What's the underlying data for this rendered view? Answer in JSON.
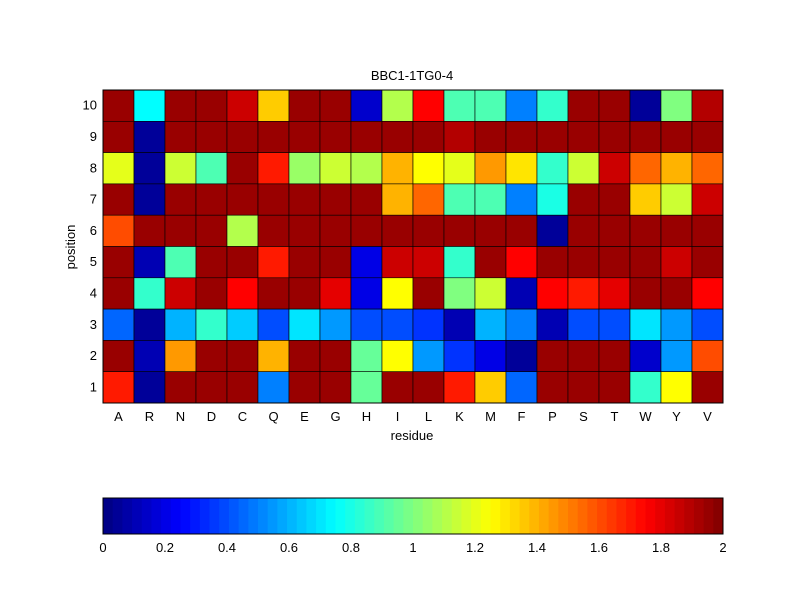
{
  "chart_data": {
    "type": "heatmap",
    "title": "BBC1-1TG0-4",
    "xlabel": "residue",
    "ylabel": "position",
    "x_categories": [
      "A",
      "R",
      "N",
      "D",
      "C",
      "Q",
      "E",
      "G",
      "H",
      "I",
      "L",
      "K",
      "M",
      "F",
      "P",
      "S",
      "T",
      "W",
      "Y",
      "V"
    ],
    "y_categories": [
      "1",
      "2",
      "3",
      "4",
      "5",
      "6",
      "7",
      "8",
      "9",
      "10"
    ],
    "rows": [
      {
        "position": "10",
        "values": [
          1.95,
          0.75,
          1.95,
          1.95,
          1.85,
          1.35,
          1.95,
          1.95,
          0.15,
          1.1,
          1.75,
          0.9,
          0.9,
          0.5,
          0.85,
          1.95,
          1.95,
          0.05,
          1.0,
          1.9
        ]
      },
      {
        "position": "9",
        "values": [
          1.95,
          0.05,
          1.95,
          1.95,
          1.95,
          1.95,
          1.95,
          1.95,
          1.95,
          1.95,
          1.95,
          1.9,
          1.95,
          1.95,
          1.95,
          1.95,
          1.95,
          1.95,
          1.95,
          1.95
        ]
      },
      {
        "position": "8",
        "values": [
          1.2,
          0.05,
          1.15,
          0.9,
          1.95,
          1.7,
          1.05,
          1.15,
          1.1,
          1.4,
          1.25,
          1.2,
          1.45,
          1.3,
          0.85,
          1.15,
          1.85,
          1.55,
          1.4,
          1.55
        ]
      },
      {
        "position": "7",
        "values": [
          1.95,
          0.05,
          1.95,
          1.95,
          1.95,
          1.95,
          1.95,
          1.95,
          1.95,
          1.4,
          1.55,
          0.9,
          0.9,
          0.5,
          0.8,
          1.95,
          1.95,
          1.35,
          1.15,
          1.85
        ]
      },
      {
        "position": "6",
        "values": [
          1.6,
          1.95,
          1.95,
          1.95,
          1.1,
          1.95,
          1.95,
          1.95,
          1.95,
          1.95,
          1.95,
          1.95,
          1.95,
          1.95,
          0.05,
          1.95,
          1.95,
          1.95,
          1.95,
          1.95
        ]
      },
      {
        "position": "5",
        "values": [
          1.95,
          0.1,
          0.9,
          1.95,
          1.95,
          1.7,
          1.95,
          1.95,
          0.2,
          1.85,
          1.85,
          0.85,
          1.95,
          1.75,
          1.95,
          1.95,
          1.95,
          1.95,
          1.85,
          1.95
        ]
      },
      {
        "position": "4",
        "values": [
          1.95,
          0.85,
          1.85,
          1.95,
          1.75,
          1.95,
          1.95,
          1.8,
          0.2,
          1.25,
          1.95,
          1.0,
          1.15,
          0.1,
          1.75,
          1.7,
          1.8,
          1.95,
          1.95,
          1.75
        ]
      },
      {
        "position": "3",
        "values": [
          0.45,
          0.05,
          0.6,
          0.85,
          0.65,
          0.4,
          0.7,
          0.55,
          0.4,
          0.4,
          0.35,
          0.1,
          0.6,
          0.5,
          0.1,
          0.4,
          0.4,
          0.7,
          0.55,
          0.4
        ]
      },
      {
        "position": "2",
        "values": [
          1.95,
          0.1,
          1.45,
          1.95,
          1.95,
          1.4,
          1.95,
          1.95,
          0.95,
          1.25,
          0.55,
          0.35,
          0.2,
          0.05,
          1.95,
          1.95,
          1.95,
          0.15,
          0.55,
          1.6
        ]
      },
      {
        "position": "1",
        "values": [
          1.7,
          0.05,
          1.95,
          1.95,
          1.95,
          0.5,
          1.95,
          1.95,
          0.95,
          1.95,
          1.95,
          1.7,
          1.35,
          0.45,
          1.95,
          1.95,
          1.95,
          0.85,
          1.25,
          1.95
        ]
      }
    ],
    "colorscale": "jet",
    "clim": [
      0,
      2
    ],
    "colorbar": {
      "orientation": "horizontal",
      "placement": "bottom",
      "tick_labels": [
        "0",
        "0.2",
        "0.4",
        "0.6",
        "0.8",
        "1",
        "1.2",
        "1.4",
        "1.6",
        "1.8",
        "2"
      ]
    },
    "grid": false
  }
}
